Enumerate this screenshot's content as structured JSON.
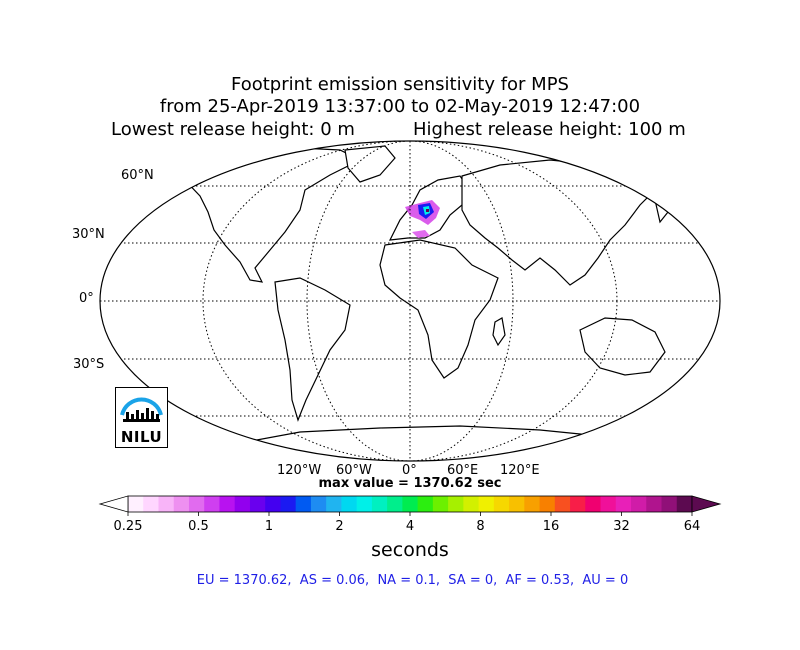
{
  "title": {
    "line1": "Footprint emission sensitivity for MPS",
    "line2": "from 25-Apr-2019 13:37:00 to 02-May-2019 12:47:00",
    "lowest": "Lowest release height: 0 m",
    "highest": "Highest release height: 100 m"
  },
  "map": {
    "projection": "robinson",
    "lat_labels": [
      "60°N",
      "30°N",
      "0°",
      "30°S"
    ],
    "lon_labels": [
      "120°W",
      "60°W",
      "0°",
      "60°E",
      "120°E"
    ],
    "max_value_text": "max value = 1370.62 sec",
    "logo_text": "NILU",
    "logo_icon": "nilu-logo-icon",
    "colors": {
      "coast": "#000000",
      "grid": "#000000",
      "logo_arc": "#1aa3e8"
    }
  },
  "colorbar": {
    "units": "seconds",
    "ticks": [
      "0.25",
      "0.5",
      "1",
      "2",
      "4",
      "8",
      "16",
      "32",
      "64"
    ],
    "colors": [
      "#fff0ff",
      "#ffd6ff",
      "#f8b4f8",
      "#ee90f0",
      "#e16bef",
      "#cf3ff0",
      "#b812f0",
      "#9200ee",
      "#6a00ee",
      "#4400f0",
      "#1b1af2",
      "#005af2",
      "#1e8cf2",
      "#20b4f0",
      "#00d8f0",
      "#00f0e8",
      "#00f0c0",
      "#00ee8c",
      "#00ec50",
      "#2cee10",
      "#6cf000",
      "#a6f000",
      "#d2f000",
      "#f0f000",
      "#f6d800",
      "#f8c000",
      "#f8a000",
      "#f88000",
      "#f85020",
      "#f81e48",
      "#f00070",
      "#f0109a",
      "#e820b8",
      "#d01ca8",
      "#b0148e",
      "#901078",
      "#5c0a50"
    ],
    "under_color": "#ffffff",
    "over_color": "#5c0a50"
  },
  "regions_text": "EU = 1370.62,  AS = 0.06,  NA = 0.1,  SA = 0,  AF = 0.53,  AU = 0"
}
